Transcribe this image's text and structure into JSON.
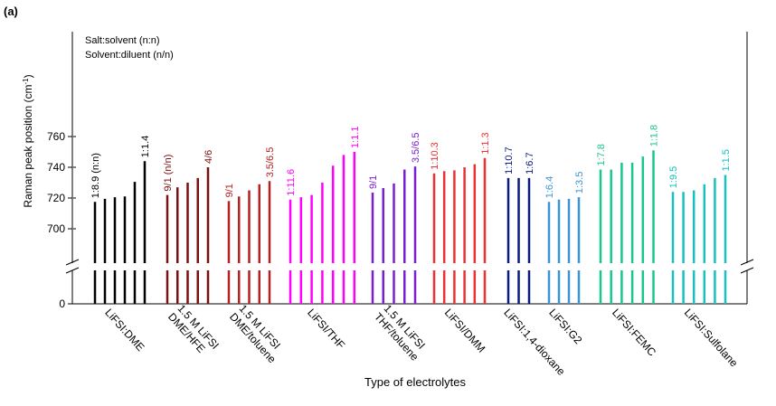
{
  "panel_label": "(a)",
  "chart_data": {
    "type": "bar",
    "title": "",
    "xlabel": "Type of electrolytes",
    "ylabel_main": "Raman peak position (cm",
    "ylabel_sup": "-1",
    "ylabel_end": ")",
    "ylim": [
      690,
      765
    ],
    "y_ticks": [
      700,
      720,
      740,
      760
    ],
    "y_tick_labels": [
      "700",
      "720",
      "740",
      "760"
    ],
    "y_bottom_tick_label": "0",
    "axis_break": true,
    "legend": [
      "Salt:solvent (n:n)",
      "Solvent:diluent (n/n)"
    ],
    "legend_position": "top-left",
    "groups": [
      {
        "name": "LiFSI:DME",
        "color": "#000000",
        "values": [
          717.5,
          719.5,
          720.5,
          721,
          730.5,
          744
        ],
        "annotations": [
          {
            "bar": 0,
            "text": "1:8.9 (n:n)"
          },
          {
            "bar": 5,
            "text": "1:1.4"
          }
        ]
      },
      {
        "name": "1.5 M LiFSI DME/HFE",
        "color": "#7a1010",
        "values": [
          722,
          727,
          730,
          733,
          740
        ],
        "annotations": [
          {
            "bar": 0,
            "text": "9/1 (n/n)"
          },
          {
            "bar": 4,
            "text": "4/6"
          }
        ]
      },
      {
        "name": "1.5 M LiFSI DME/toluene",
        "color": "#b52020",
        "values": [
          718,
          721,
          725,
          729,
          731
        ],
        "annotations": [
          {
            "bar": 0,
            "text": "9/1"
          },
          {
            "bar": 4,
            "text": "3.5/6.5"
          }
        ]
      },
      {
        "name": "LiFSI/THF",
        "color": "#ff00ff",
        "values": [
          719,
          720.5,
          722,
          730,
          741,
          748,
          750
        ],
        "annotations": [
          {
            "bar": 0,
            "text": "1:11.6"
          },
          {
            "bar": 6,
            "text": "1:1.1"
          }
        ]
      },
      {
        "name": "1.5 M LiFSI THF/toluene",
        "color": "#7a1fd0",
        "values": [
          723.5,
          726.5,
          729.5,
          738.5,
          740.5
        ],
        "annotations": [
          {
            "bar": 0,
            "text": "9/1"
          },
          {
            "bar": 4,
            "text": "3.5/6.5"
          }
        ]
      },
      {
        "name": "LiFSI/DMM",
        "color": "#ee3030",
        "values": [
          736,
          737.5,
          738,
          740,
          742,
          746
        ],
        "annotations": [
          {
            "bar": 0,
            "text": "1:10.3"
          },
          {
            "bar": 5,
            "text": "1:1.3"
          }
        ]
      },
      {
        "name": "LiFSI:1,4-dioxane",
        "color": "#0a1a80",
        "values": [
          733,
          733,
          733
        ],
        "annotations": [
          {
            "bar": 0,
            "text": "1:10.7"
          },
          {
            "bar": 2,
            "text": "1:6.7"
          }
        ]
      },
      {
        "name": "LiFSI:G2",
        "color": "#3a95d5",
        "values": [
          717.5,
          719,
          719.5,
          720.5
        ],
        "annotations": [
          {
            "bar": 0,
            "text": "1:6.4"
          },
          {
            "bar": 3,
            "text": "1:3.5"
          }
        ]
      },
      {
        "name": "LiFSI:FEMC",
        "color": "#18c690",
        "values": [
          738.5,
          738.5,
          743,
          743,
          747,
          751
        ],
        "annotations": [
          {
            "bar": 0,
            "text": "1:7.8"
          },
          {
            "bar": 5,
            "text": "1:1.8"
          }
        ]
      },
      {
        "name": "LiFSI:Sulfolane",
        "color": "#18c0c0",
        "values": [
          724,
          724,
          725,
          729,
          733,
          735
        ],
        "annotations": [
          {
            "bar": 0,
            "text": "1:9.5"
          },
          {
            "bar": 5,
            "text": "1:1.5"
          }
        ]
      }
    ]
  }
}
